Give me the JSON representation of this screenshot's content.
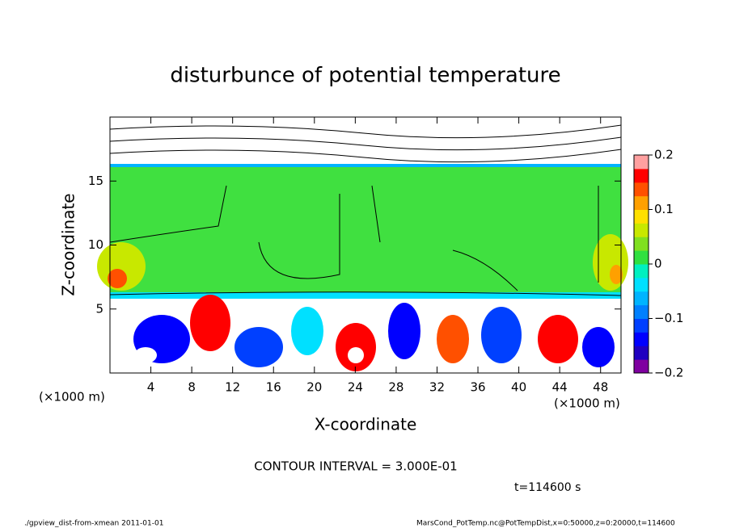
{
  "chart_data": {
    "type": "heatmap",
    "title": "disturbunce of potential temperature",
    "x_label": "X-coordinate",
    "y_label": "Z-coordinate",
    "x_unit_left": "(×1000 m)",
    "x_unit_right": "(×1000 m)",
    "xlim": [
      0,
      50
    ],
    "xticks": [
      4,
      8,
      12,
      16,
      20,
      24,
      28,
      32,
      36,
      40,
      44,
      48
    ],
    "ylim": [
      0,
      20
    ],
    "yticks": [
      5,
      10,
      15
    ],
    "colorbar": {
      "clim": [
        -0.2,
        0.2
      ],
      "ticks": [
        {
          "value": 0.2,
          "label": "0.2"
        },
        {
          "value": 0.1,
          "label": "0.1"
        },
        0,
        {
          "value": -0.1,
          "label": "−0.1"
        },
        {
          "value": -0.2,
          "label": "−0.2"
        }
      ],
      "colors": [
        "#7f00a0",
        "#2000c0",
        "#0000ff",
        "#0040ff",
        "#0080ff",
        "#00b4ff",
        "#00e0ff",
        "#00f0c0",
        "#30e040",
        "#80e020",
        "#c8e800",
        "#ffe000",
        "#ffa000",
        "#ff5000",
        "#ff0000",
        "#ffa0a0"
      ]
    },
    "contour_interval": "CONTOUR INTERVAL = 3.000E-01",
    "time_label": "t=114600 s",
    "footer_left": "./gpview_dist-from-xmean  2011-01-01",
    "footer_right": "MarsCond_PotTemp.nc@PotTempDist,x=0:50000,z=0:20000,t=114600"
  }
}
